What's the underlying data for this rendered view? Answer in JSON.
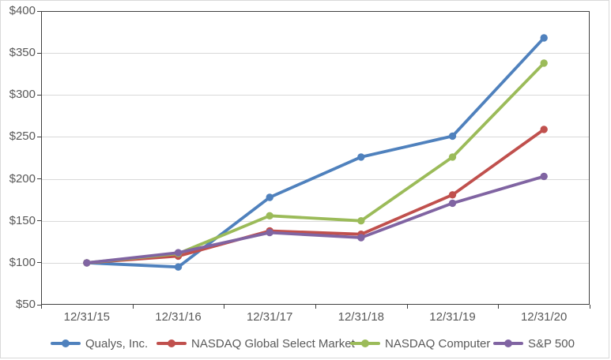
{
  "chart_data": {
    "type": "line",
    "title": "",
    "xlabel": "",
    "ylabel": "",
    "categories": [
      "12/31/15",
      "12/31/16",
      "12/31/17",
      "12/31/18",
      "12/31/19",
      "12/31/20"
    ],
    "series": [
      {
        "name": "Qualys, Inc.",
        "color": "#4F81BD",
        "values": [
          100,
          95,
          178,
          226,
          251,
          368
        ]
      },
      {
        "name": "NASDAQ Global Select Market",
        "color": "#C0504D",
        "values": [
          100,
          108,
          138,
          134,
          181,
          259
        ]
      },
      {
        "name": "NASDAQ Computer",
        "color": "#9BBB59",
        "values": [
          100,
          111,
          156,
          150,
          226,
          338
        ]
      },
      {
        "name": "S&P 500",
        "color": "#8064A2",
        "values": [
          100,
          112,
          136,
          130,
          171,
          203
        ]
      }
    ],
    "ylim": [
      50,
      400
    ],
    "y_tick_step": 50,
    "y_tick_labels": [
      "$400",
      "$350",
      "$300",
      "$250",
      "$200",
      "$150",
      "$100",
      "$50"
    ],
    "grid": "horizontal-only",
    "legend_position": "bottom",
    "marker_shape": "circle"
  },
  "colors": {
    "gridline": "#d9d9d9",
    "plot_border": "#404040",
    "axis_text": "#595959",
    "legend_text": "#595959",
    "background": "#ffffff",
    "outer_border": "#d9d9d9"
  }
}
